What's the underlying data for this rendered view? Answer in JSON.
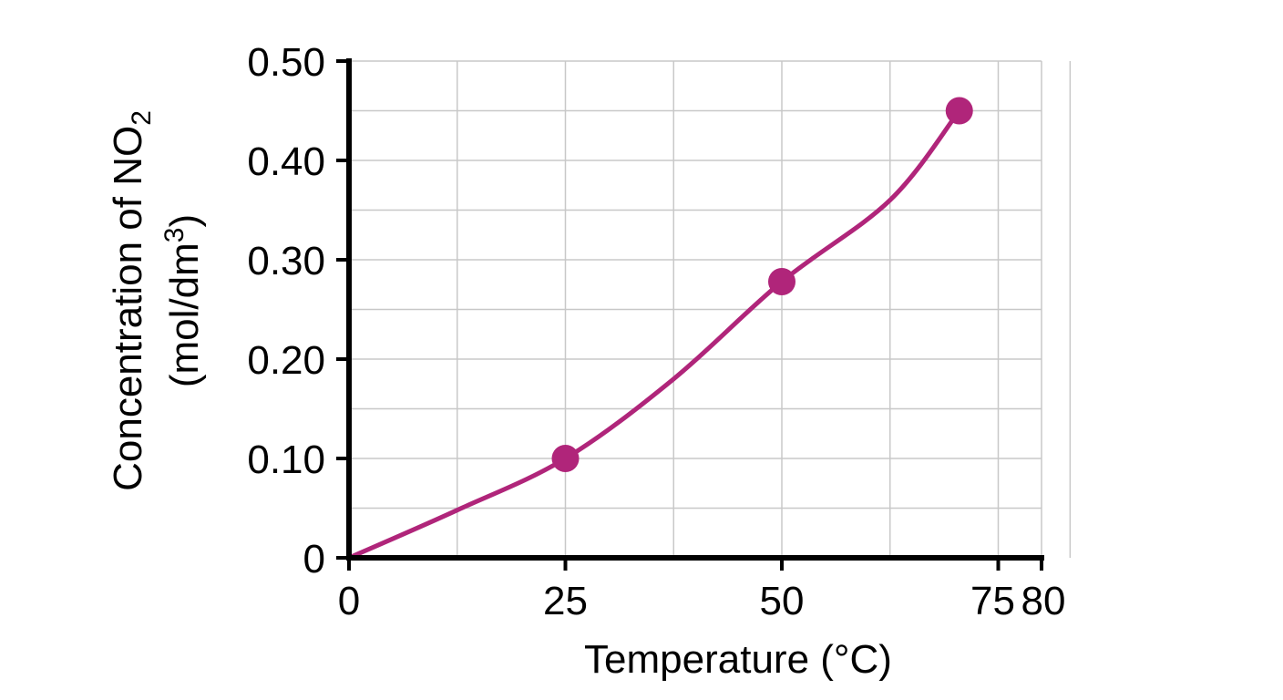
{
  "chart_data": {
    "type": "line",
    "title": "",
    "xlabel": "Temperature (°C)",
    "ylabel": {
      "line1_main": "Concentration of NO",
      "line1_sub": "2",
      "line2_main": "(mol/dm",
      "line2_sup": "3",
      "line2_end": ")"
    },
    "xlim": [
      0,
      80
    ],
    "ylim": [
      0,
      0.5
    ],
    "x_ticks": [
      {
        "value": 0,
        "label": "0"
      },
      {
        "value": 25,
        "label": "25"
      },
      {
        "value": 50,
        "label": "50"
      },
      {
        "value": 75,
        "label": "75"
      },
      {
        "value": 80,
        "label": "80"
      }
    ],
    "y_ticks": [
      {
        "value": 0,
        "label": "0"
      },
      {
        "value": 0.1,
        "label": "0.10"
      },
      {
        "value": 0.2,
        "label": "0.20"
      },
      {
        "value": 0.3,
        "label": "0.30"
      },
      {
        "value": 0.4,
        "label": "0.40"
      },
      {
        "value": 0.5,
        "label": "0.50"
      }
    ],
    "x_grid": [
      12.5,
      25,
      37.5,
      50,
      62.5,
      75,
      83.3
    ],
    "y_grid": [
      0.05,
      0.1,
      0.15,
      0.2,
      0.25,
      0.3,
      0.35,
      0.4,
      0.45,
      0.5
    ],
    "grid": true,
    "series": [
      {
        "color": "#b0257a",
        "curve": [
          {
            "x": 0,
            "y": 0
          },
          {
            "x": 12.5,
            "y": 0.048
          },
          {
            "x": 25,
            "y": 0.1
          },
          {
            "x": 37.5,
            "y": 0.18
          },
          {
            "x": 50,
            "y": 0.278
          },
          {
            "x": 62.5,
            "y": 0.36
          },
          {
            "x": 70.5,
            "y": 0.45
          }
        ],
        "points": [
          {
            "x": 25,
            "y": 0.1
          },
          {
            "x": 50,
            "y": 0.278
          },
          {
            "x": 70.5,
            "y": 0.45
          }
        ]
      }
    ]
  }
}
